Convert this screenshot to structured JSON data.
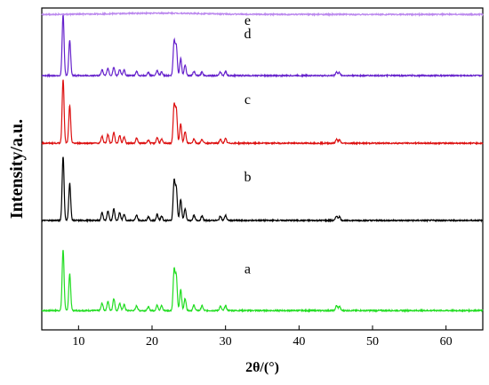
{
  "chart_data": {
    "type": "line",
    "title": "",
    "xlabel": "2θ/(°)",
    "ylabel": "Intensity/a.u.",
    "xlim": [
      5,
      65
    ],
    "x_ticks": [
      10,
      20,
      30,
      40,
      50,
      60
    ],
    "y_ticks_shown": false,
    "grid": false,
    "legend": "none",
    "series": [
      {
        "name": "a",
        "color": "#22dd22",
        "baseline_fraction": 0.06,
        "height_fraction": 0.19,
        "peaks": [
          [
            7.9,
            1.0
          ],
          [
            8.8,
            0.6
          ],
          [
            13.2,
            0.12
          ],
          [
            14.0,
            0.15
          ],
          [
            14.8,
            0.2
          ],
          [
            15.6,
            0.12
          ],
          [
            16.2,
            0.1
          ],
          [
            17.9,
            0.08
          ],
          [
            19.5,
            0.06
          ],
          [
            20.7,
            0.09
          ],
          [
            21.3,
            0.08
          ],
          [
            23.0,
            0.65
          ],
          [
            23.3,
            0.55
          ],
          [
            23.9,
            0.35
          ],
          [
            24.5,
            0.2
          ],
          [
            25.7,
            0.09
          ],
          [
            26.8,
            0.08
          ],
          [
            29.3,
            0.07
          ],
          [
            30.0,
            0.08
          ],
          [
            45.1,
            0.08
          ],
          [
            45.5,
            0.07
          ]
        ]
      },
      {
        "name": "b",
        "color": "#000000",
        "baseline_fraction": 0.34,
        "height_fraction": 0.2,
        "peaks": [
          [
            7.9,
            1.0
          ],
          [
            8.8,
            0.58
          ],
          [
            13.2,
            0.12
          ],
          [
            14.0,
            0.14
          ],
          [
            14.8,
            0.18
          ],
          [
            15.6,
            0.12
          ],
          [
            16.2,
            0.1
          ],
          [
            17.9,
            0.08
          ],
          [
            19.5,
            0.06
          ],
          [
            20.7,
            0.09
          ],
          [
            21.3,
            0.07
          ],
          [
            23.0,
            0.6
          ],
          [
            23.3,
            0.5
          ],
          [
            23.9,
            0.33
          ],
          [
            24.5,
            0.18
          ],
          [
            25.7,
            0.08
          ],
          [
            26.8,
            0.07
          ],
          [
            29.3,
            0.07
          ],
          [
            30.0,
            0.08
          ],
          [
            45.1,
            0.07
          ],
          [
            45.5,
            0.06
          ]
        ]
      },
      {
        "name": "c",
        "color": "#dd1111",
        "baseline_fraction": 0.58,
        "height_fraction": 0.2,
        "peaks": [
          [
            7.9,
            1.0
          ],
          [
            8.8,
            0.58
          ],
          [
            13.2,
            0.11
          ],
          [
            14.0,
            0.14
          ],
          [
            14.8,
            0.17
          ],
          [
            15.6,
            0.12
          ],
          [
            16.2,
            0.1
          ],
          [
            17.9,
            0.08
          ],
          [
            19.5,
            0.05
          ],
          [
            20.7,
            0.09
          ],
          [
            21.3,
            0.06
          ],
          [
            23.0,
            0.58
          ],
          [
            23.3,
            0.52
          ],
          [
            23.9,
            0.3
          ],
          [
            24.5,
            0.18
          ],
          [
            25.7,
            0.07
          ],
          [
            26.8,
            0.06
          ],
          [
            29.3,
            0.06
          ],
          [
            30.0,
            0.07
          ],
          [
            45.1,
            0.06
          ],
          [
            45.5,
            0.05
          ]
        ]
      },
      {
        "name": "d",
        "color": "#6622cc",
        "baseline_fraction": 0.79,
        "height_fraction": 0.19,
        "peaks": [
          [
            7.9,
            1.0
          ],
          [
            8.8,
            0.58
          ],
          [
            13.2,
            0.1
          ],
          [
            14.0,
            0.12
          ],
          [
            14.8,
            0.14
          ],
          [
            15.6,
            0.1
          ],
          [
            16.2,
            0.09
          ],
          [
            17.9,
            0.07
          ],
          [
            19.5,
            0.05
          ],
          [
            20.7,
            0.08
          ],
          [
            21.3,
            0.06
          ],
          [
            23.0,
            0.55
          ],
          [
            23.3,
            0.48
          ],
          [
            23.9,
            0.28
          ],
          [
            24.5,
            0.18
          ],
          [
            25.7,
            0.07
          ],
          [
            26.8,
            0.06
          ],
          [
            29.3,
            0.06
          ],
          [
            30.0,
            0.07
          ],
          [
            45.1,
            0.06
          ],
          [
            45.5,
            0.05
          ]
        ]
      },
      {
        "name": "e",
        "color": "#bb88ee",
        "baseline_fraction": 0.98,
        "height_fraction": 0.0,
        "amorphous_hump": {
          "center": 21,
          "width": 6,
          "height_fraction": 0.004
        },
        "peaks": []
      }
    ]
  }
}
